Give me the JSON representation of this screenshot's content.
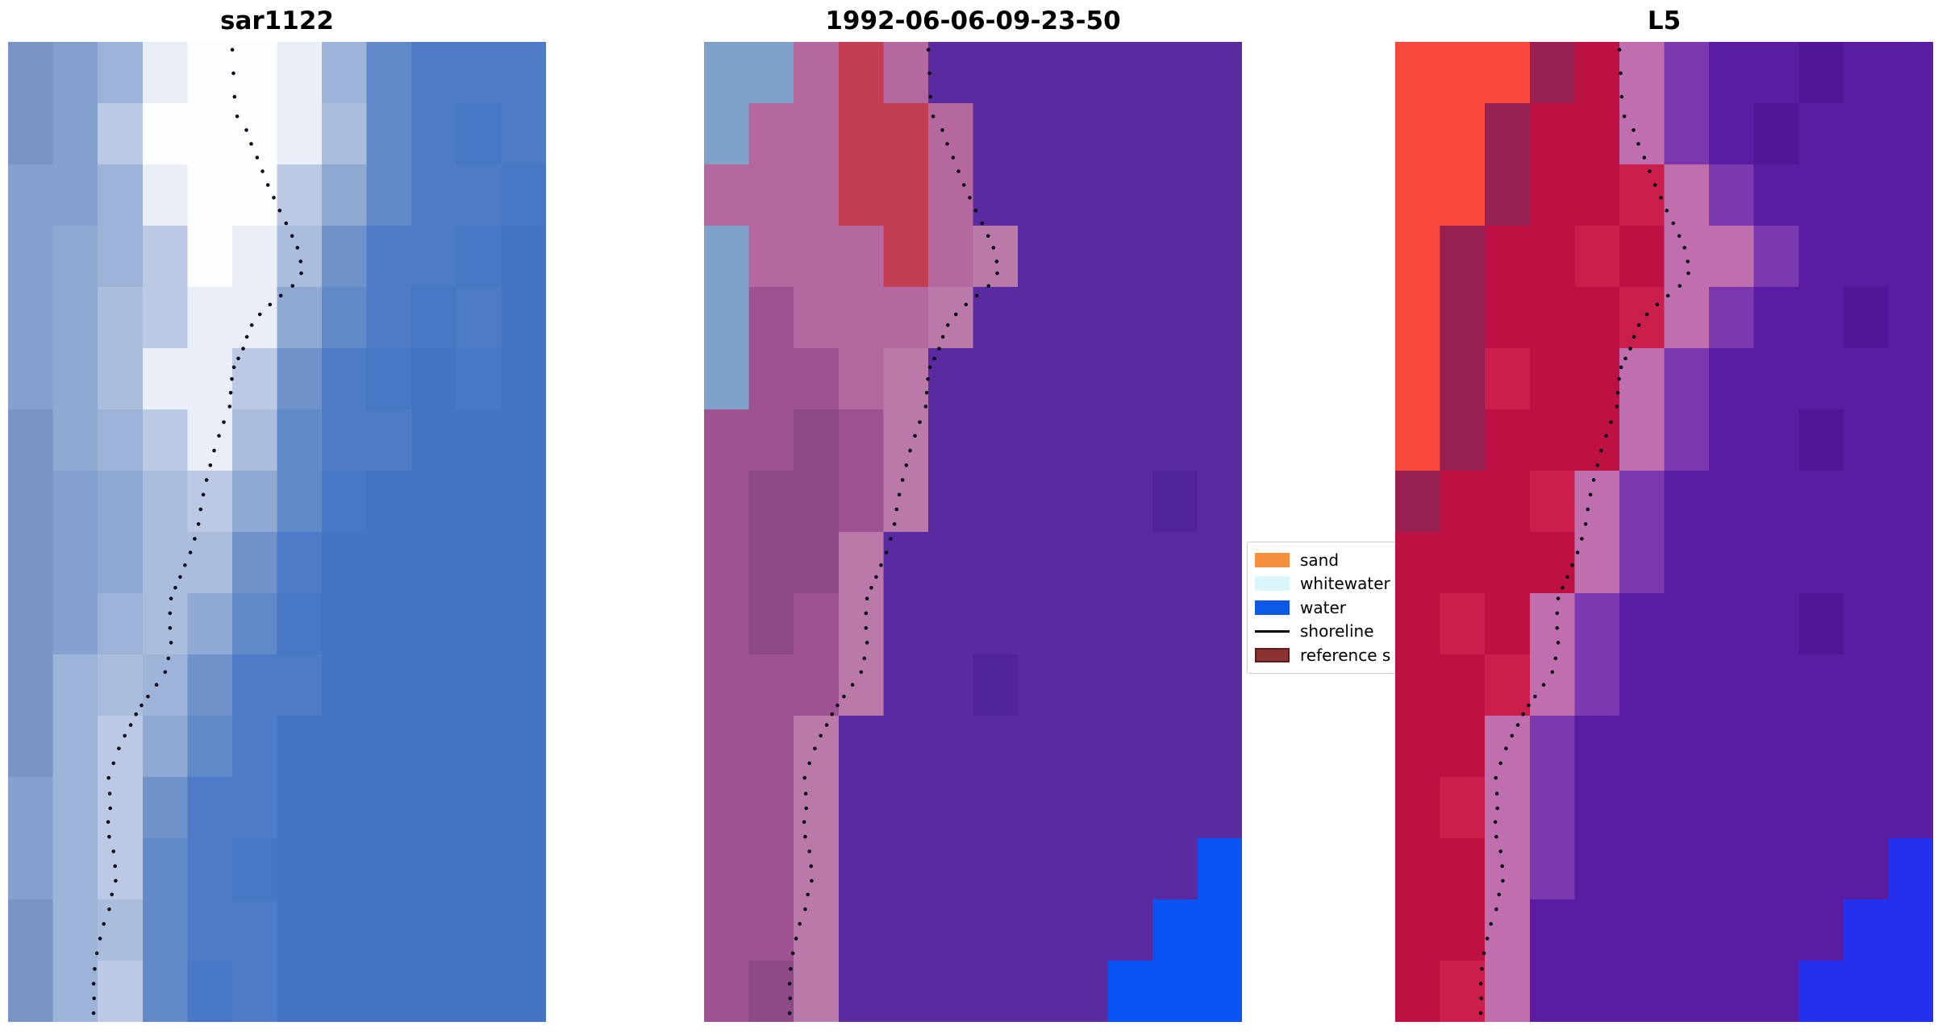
{
  "figure": {
    "background": "#ffffff"
  },
  "panels": [
    {
      "title": "sar1122",
      "grid": {
        "cols": 12,
        "rows": 16,
        "palette": {
          "a": "#84a0cc",
          "b": "#7794c4",
          "c": "#9db3d8",
          "d": "#bcc9e4",
          "e": "#e9eef7",
          "f": "#fdfefe",
          "g": "#6289c8",
          "h": "#4d7bc8",
          "i": "#4474c3",
          "j": "#aabddd",
          "k": "#8fa9d2",
          "m": "#6e92c9",
          "n": "#4877c5"
        },
        "cells": [
          "baceffecghhh",
          "badfffejghnh",
          "aaceffdkghhn",
          "akcdfejmhhni",
          "akjdeekghnhi",
          "akjeedmhnini",
          "bkcdejghhiii",
          "bakjdkgniiii",
          "bakjjmhiiiii",
          "bacjkgniiiii",
          "bcjcmhhiiiii",
          "bcdkghiiiiii",
          "acdmhhiiiiii",
          "acdghniiiiii",
          "bcjghhiiiiii",
          "bcdgnhiiiiii"
        ]
      }
    },
    {
      "title": "1992-06-06-09-23-50",
      "grid": {
        "cols": 12,
        "rows": 16,
        "palette": {
          "A": "#7fa2ca",
          "p": "#9e5292",
          "q": "#b4689f",
          "t": "#8c4a87",
          "s": "#b97aa9",
          "r": "#c33e52",
          "w": "#5a2aa1",
          "v": "#52249a",
          "u": "#0b52f2"
        },
        "cells": [
          "AAqrqwwwwwww",
          "Aqqrrqwwwwww",
          "qqqrrqwwwwww",
          "Aqqqrqswwwww",
          "Apqqqswwwwww",
          "Appqswwwwwww",
          "pptpswwwwwww",
          "pttpswwwwwvw",
          "pttswwwwwwww",
          "ptpswwwwwwww",
          "pppswwvwwwww",
          "ppswwwwwwwww",
          "ppswwwwwwwww",
          "ppswwwwwwwwu",
          "ppswwwwwwwuu",
          "ptswwwwwwuuu"
        ]
      }
    },
    {
      "title": "L5",
      "grid": {
        "cols": 12,
        "rows": 16,
        "palette": {
          "R": "#f8473d",
          "D": "#96204f",
          "C": "#bc1142",
          "E": "#ca1e4c",
          "K": "#c06fae",
          "L": "#7c38ae",
          "U": "#5a1da1",
          "V": "#511798",
          "B": "#2331ef"
        },
        "cells": [
          "RRRDCKLUUVUU",
          "RRDCCKLUVUUU",
          "RRDCCEKLUUUU",
          "RDCCECKKLUUU",
          "RDCCCEKLUUVU",
          "RDECCKLUUUUU",
          "RDCCCKLUUVUU",
          "DCCEKLUUUUUU",
          "CCCCKLUUUUUU",
          "CECKLUUUUVUU",
          "CCEKLUUUUUUU",
          "CCKLUUUUUUUU",
          "CEKLUUUUUUUU",
          "CCKLUUUUUUUB",
          "CCKUUUUUUUBB",
          "CEKUUUUUUBBB"
        ]
      }
    }
  ],
  "shoreline": {
    "color": "#0d0d1a",
    "dot_radius": 2.3,
    "points": [
      [
        0.417,
        0.008
      ],
      [
        0.419,
        0.032
      ],
      [
        0.421,
        0.056
      ],
      [
        0.426,
        0.076
      ],
      [
        0.443,
        0.09
      ],
      [
        0.452,
        0.104
      ],
      [
        0.463,
        0.118
      ],
      [
        0.473,
        0.132
      ],
      [
        0.483,
        0.146
      ],
      [
        0.494,
        0.159
      ],
      [
        0.505,
        0.172
      ],
      [
        0.517,
        0.185
      ],
      [
        0.528,
        0.198
      ],
      [
        0.538,
        0.21
      ],
      [
        0.544,
        0.224
      ],
      [
        0.545,
        0.236
      ],
      [
        0.529,
        0.249
      ],
      [
        0.507,
        0.259
      ],
      [
        0.487,
        0.268
      ],
      [
        0.468,
        0.278
      ],
      [
        0.453,
        0.289
      ],
      [
        0.444,
        0.301
      ],
      [
        0.437,
        0.313
      ],
      [
        0.428,
        0.323
      ],
      [
        0.42,
        0.332
      ],
      [
        0.416,
        0.344
      ],
      [
        0.414,
        0.358
      ],
      [
        0.412,
        0.372
      ],
      [
        0.401,
        0.388
      ],
      [
        0.392,
        0.402
      ],
      [
        0.383,
        0.417
      ],
      [
        0.376,
        0.432
      ],
      [
        0.369,
        0.447
      ],
      [
        0.363,
        0.462
      ],
      [
        0.358,
        0.477
      ],
      [
        0.354,
        0.492
      ],
      [
        0.347,
        0.507
      ],
      [
        0.339,
        0.521
      ],
      [
        0.329,
        0.534
      ],
      [
        0.32,
        0.546
      ],
      [
        0.311,
        0.557
      ],
      [
        0.303,
        0.568
      ],
      [
        0.301,
        0.583
      ],
      [
        0.301,
        0.598
      ],
      [
        0.303,
        0.613
      ],
      [
        0.298,
        0.629
      ],
      [
        0.292,
        0.643
      ],
      [
        0.276,
        0.656
      ],
      [
        0.26,
        0.668
      ],
      [
        0.248,
        0.677
      ],
      [
        0.238,
        0.686
      ],
      [
        0.228,
        0.697
      ],
      [
        0.217,
        0.708
      ],
      [
        0.206,
        0.721
      ],
      [
        0.196,
        0.736
      ],
      [
        0.187,
        0.751
      ],
      [
        0.189,
        0.767
      ],
      [
        0.19,
        0.782
      ],
      [
        0.186,
        0.796
      ],
      [
        0.188,
        0.811
      ],
      [
        0.196,
        0.826
      ],
      [
        0.199,
        0.841
      ],
      [
        0.2,
        0.856
      ],
      [
        0.193,
        0.87
      ],
      [
        0.188,
        0.885
      ],
      [
        0.178,
        0.9
      ],
      [
        0.171,
        0.915
      ],
      [
        0.165,
        0.93
      ],
      [
        0.161,
        0.946
      ],
      [
        0.159,
        0.961
      ],
      [
        0.16,
        0.976
      ],
      [
        0.159,
        0.991
      ]
    ]
  },
  "legend": {
    "background": "#ffffff",
    "border_color": "#cccccc",
    "items": [
      {
        "label": "sand",
        "swatch": "patch",
        "color": "#f6903f"
      },
      {
        "label": "whitewater",
        "swatch": "patch",
        "color": "#d9f6f8"
      },
      {
        "label": "water",
        "swatch": "patch",
        "color": "#0c59e8"
      },
      {
        "label": "shoreline",
        "swatch": "line",
        "color": "#000000"
      },
      {
        "label": "reference s",
        "swatch": "patch",
        "color": "#8b3233",
        "edge_color": "#5a1d1e"
      }
    ]
  },
  "chart_data": [
    {
      "type": "heatmap",
      "title": "sar1122"
    },
    {
      "type": "heatmap",
      "title": "1992-06-06-09-23-50",
      "legend_entries": [
        "sand",
        "whitewater",
        "water",
        "shoreline",
        "reference s"
      ],
      "legend_colors": [
        "#f6903f",
        "#d9f6f8",
        "#0c59e8",
        "#000000",
        "#8b3233"
      ]
    },
    {
      "type": "heatmap",
      "title": "L5"
    }
  ]
}
